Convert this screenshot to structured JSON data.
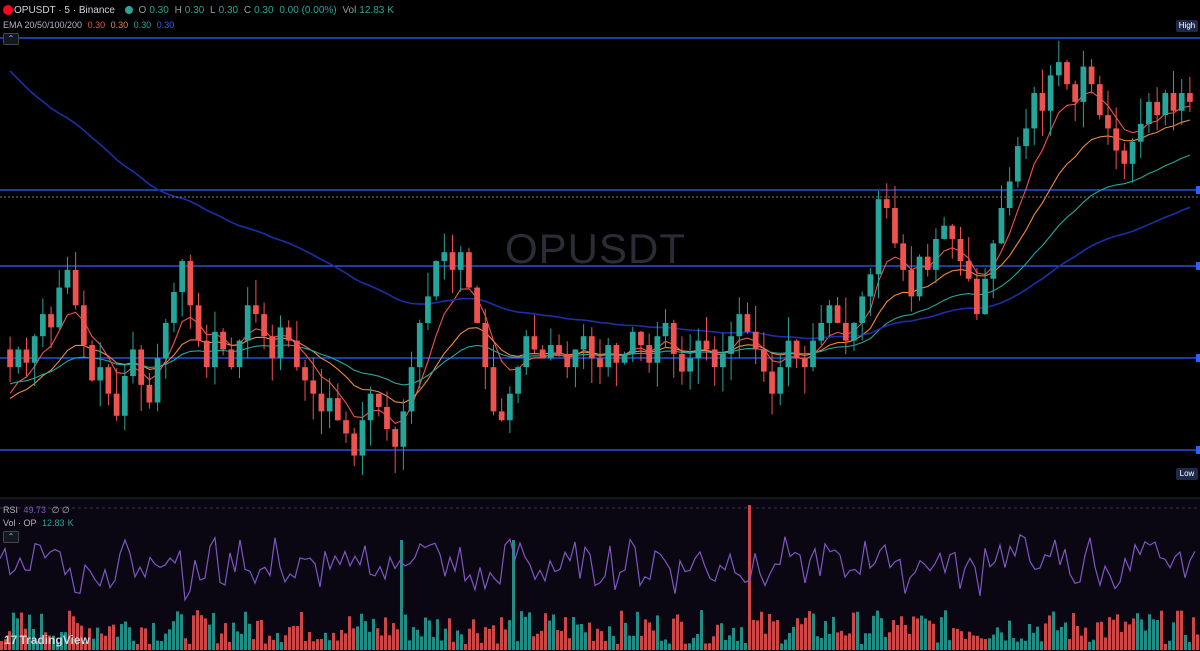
{
  "symbol": {
    "title": "OPUSDT · 5 · Binance",
    "ohlc": [
      {
        "label": "O",
        "value": "0.30"
      },
      {
        "label": "H",
        "value": "0.30"
      },
      {
        "label": "L",
        "value": "0.30"
      },
      {
        "label": "C",
        "value": "0.30"
      },
      {
        "label": "",
        "value": "0.00 (0.00%)"
      }
    ],
    "vol_label": "Vol",
    "vol_value": "12.83",
    "vol_suffix": "K"
  },
  "ema": {
    "label": "EMA 20/50/100/200",
    "values": [
      {
        "value": "0.30",
        "color": "#ef5350"
      },
      {
        "value": "0.30",
        "color": "#f0883e"
      },
      {
        "value": "0.30",
        "color": "#26a69a"
      },
      {
        "value": "0.30",
        "color": "#2962ff"
      }
    ]
  },
  "rsi": {
    "label": "RSI",
    "value": "49.73",
    "extra": "∅ ∅"
  },
  "volume": {
    "label": "Vol · OP",
    "value": "12.83",
    "suffix": "K"
  },
  "badges": {
    "high": "High",
    "low": "Low"
  },
  "watermark": "OPUSDT",
  "brand": "TradingView",
  "icons": [
    "collapse-chevron-icon",
    "tradingview-logo-icon",
    "symbol-icon"
  ],
  "colors": {
    "up": "#26a69a",
    "down": "#ef5350",
    "ema20": "#ef5350",
    "ema50": "#f0883e",
    "ema100": "#26a69a",
    "ema200": "#1c2fa8",
    "levels": "#2962ff",
    "rsi": "#7e57c2"
  },
  "chart_data": {
    "type": "candlestick",
    "symbol": "OPUSDT",
    "timeframe": "5",
    "exchange": "Binance",
    "horizontal_levels": [
      "High",
      "Low"
    ],
    "candles_close": [
      0.2986,
      0.299,
      0.2987,
      0.2993,
      0.2998,
      0.2995,
      0.3004,
      0.3008,
      0.3,
      0.2991,
      0.2983,
      0.2986,
      0.298,
      0.2975,
      0.2984,
      0.299,
      0.2982,
      0.2978,
      0.2988,
      0.2996,
      0.3003,
      0.301,
      0.3,
      0.2992,
      0.2986,
      0.2994,
      0.299,
      0.2986,
      0.2992,
      0.3,
      0.2998,
      0.2993,
      0.2988,
      0.2995,
      0.2992,
      0.2986,
      0.2983,
      0.298,
      0.2976,
      0.2979,
      0.2974,
      0.2971,
      0.2966,
      0.2974,
      0.298,
      0.2977,
      0.2972,
      0.2968,
      0.2976,
      0.2986,
      0.2996,
      0.3002,
      0.301,
      0.3012,
      0.3008,
      0.3012,
      0.3004,
      0.2996,
      0.2986,
      0.2976,
      0.2974,
      0.298,
      0.2986,
      0.2993,
      0.299,
      0.2988,
      0.2991,
      0.2989,
      0.2986,
      0.299,
      0.2993,
      0.2988,
      0.2986,
      0.2991,
      0.2987,
      0.2989,
      0.2994,
      0.2991,
      0.2987,
      0.2993,
      0.2996,
      0.2989,
      0.2985,
      0.2988,
      0.2992,
      0.299,
      0.2986,
      0.2989,
      0.2993,
      0.2998,
      0.2994,
      0.299,
      0.2985,
      0.298,
      0.2986,
      0.2992,
      0.2988,
      0.2986,
      0.2992,
      0.2996,
      0.3,
      0.2996,
      0.2992,
      0.2996,
      0.3002,
      0.3007,
      0.3024,
      0.3022,
      0.3014,
      0.3008,
      0.3002,
      0.3011,
      0.3008,
      0.3015,
      0.3018,
      0.3015,
      0.301,
      0.3006,
      0.2998,
      0.3006,
      0.3014,
      0.3022,
      0.3028,
      0.3036,
      0.304,
      0.3048,
      0.3044,
      0.3052,
      0.3055,
      0.305,
      0.3046,
      0.3054,
      0.305,
      0.3043,
      0.304,
      0.3035,
      0.3032,
      0.3037,
      0.3041,
      0.3046,
      0.3043,
      0.3048,
      0.3044,
      0.3048,
      0.3046
    ],
    "ema20": [],
    "rsi_range": [
      0,
      100
    ],
    "price_range_visible": [
      0.2965,
      0.306
    ]
  }
}
